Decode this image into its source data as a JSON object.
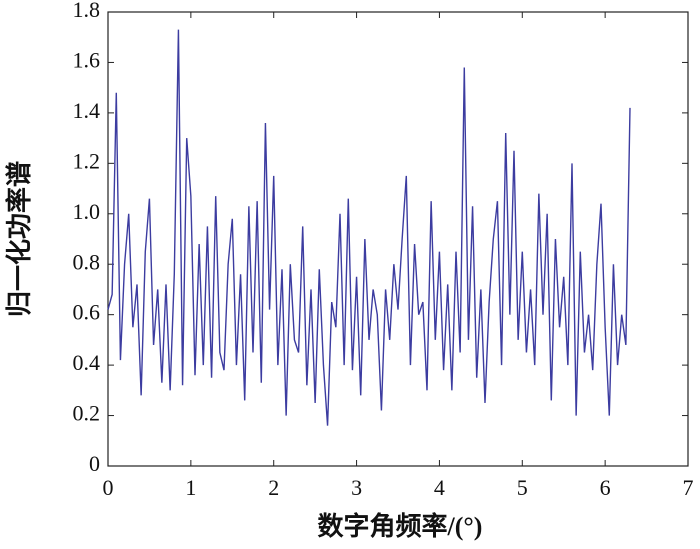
{
  "chart_data": {
    "type": "line",
    "xlabel": "数字角频率/(°)",
    "ylabel": "归一化功率谱",
    "x": [
      0,
      0.05,
      0.1,
      0.15,
      0.2,
      0.25,
      0.3,
      0.35,
      0.4,
      0.45,
      0.5,
      0.55,
      0.6,
      0.65,
      0.7,
      0.75,
      0.8,
      0.85,
      0.9,
      0.95,
      1,
      1.05,
      1.1,
      1.15,
      1.2,
      1.25,
      1.3,
      1.35,
      1.4,
      1.45,
      1.5,
      1.55,
      1.6,
      1.65,
      1.7,
      1.75,
      1.8,
      1.85,
      1.9,
      1.95,
      2,
      2.05,
      2.1,
      2.15,
      2.2,
      2.25,
      2.3,
      2.35,
      2.4,
      2.45,
      2.5,
      2.55,
      2.6,
      2.65,
      2.7,
      2.75,
      2.8,
      2.85,
      2.9,
      2.95,
      3,
      3.05,
      3.1,
      3.15,
      3.2,
      3.25,
      3.3,
      3.35,
      3.4,
      3.45,
      3.5,
      3.55,
      3.6,
      3.65,
      3.7,
      3.75,
      3.8,
      3.85,
      3.9,
      3.95,
      4,
      4.05,
      4.1,
      4.15,
      4.2,
      4.25,
      4.3,
      4.35,
      4.4,
      4.45,
      4.5,
      4.55,
      4.6,
      4.65,
      4.7,
      4.75,
      4.8,
      4.85,
      4.9,
      4.95,
      5,
      5.05,
      5.1,
      5.15,
      5.2,
      5.25,
      5.3,
      5.35,
      5.4,
      5.45,
      5.5,
      5.55,
      5.6,
      5.65,
      5.7,
      5.75,
      5.8,
      5.85,
      5.9,
      5.95,
      6,
      6.05,
      6.1,
      6.15,
      6.2,
      6.25,
      6.3
    ],
    "series": [
      {
        "color": "#3c3ca0",
        "values": [
          0.62,
          0.68,
          1.48,
          0.42,
          0.8,
          1.0,
          0.55,
          0.72,
          0.28,
          0.85,
          1.06,
          0.48,
          0.7,
          0.33,
          0.72,
          0.3,
          0.76,
          1.73,
          0.32,
          1.3,
          1.07,
          0.36,
          0.88,
          0.4,
          0.95,
          0.35,
          1.07,
          0.45,
          0.38,
          0.8,
          0.98,
          0.4,
          0.76,
          0.26,
          1.03,
          0.45,
          1.05,
          0.33,
          1.36,
          0.62,
          1.15,
          0.4,
          0.78,
          0.2,
          0.8,
          0.5,
          0.45,
          0.95,
          0.32,
          0.7,
          0.25,
          0.78,
          0.4,
          0.16,
          0.65,
          0.55,
          1.0,
          0.4,
          1.06,
          0.38,
          0.75,
          0.28,
          0.9,
          0.5,
          0.7,
          0.6,
          0.22,
          0.7,
          0.5,
          0.8,
          0.62,
          0.9,
          1.15,
          0.4,
          0.88,
          0.6,
          0.65,
          0.3,
          1.05,
          0.5,
          0.85,
          0.38,
          0.72,
          0.3,
          0.85,
          0.45,
          1.58,
          0.5,
          1.03,
          0.35,
          0.7,
          0.25,
          0.65,
          0.9,
          1.05,
          0.4,
          1.32,
          0.6,
          1.25,
          0.5,
          0.85,
          0.45,
          0.7,
          0.4,
          1.08,
          0.6,
          1.0,
          0.26,
          0.9,
          0.55,
          0.75,
          0.4,
          1.2,
          0.2,
          0.85,
          0.45,
          0.6,
          0.38,
          0.8,
          1.04,
          0.55,
          0.2,
          0.8,
          0.4,
          0.6,
          0.48,
          1.42
        ]
      }
    ],
    "xlim": [
      0,
      7
    ],
    "xticks": [
      0,
      1,
      2,
      3,
      4,
      5,
      6,
      7
    ],
    "ylim": [
      0,
      1.8
    ],
    "yticks": [
      0,
      0.2,
      0.4,
      0.6,
      0.8,
      {
        "value": 1,
        "label": "1.0"
      },
      1.2,
      1.4,
      1.6,
      1.8
    ]
  }
}
